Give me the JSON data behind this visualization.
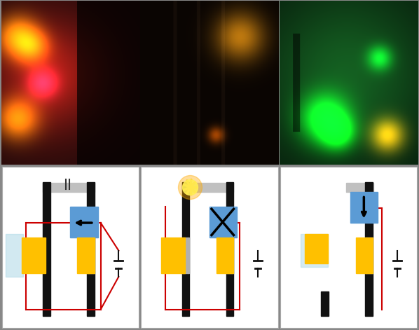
{
  "figsize": [
    5.98,
    4.71
  ],
  "dpi": 100,
  "bar_color": "#111111",
  "rail_color": "#aaaaaa",
  "blue_box_color": "#5b9bd5",
  "orange_box_color": "#ffc000",
  "light_blue_color": "#add8e6",
  "red_wire_color": "#cc0000",
  "spark_color": "#ffaa00",
  "border_color": "#888888"
}
